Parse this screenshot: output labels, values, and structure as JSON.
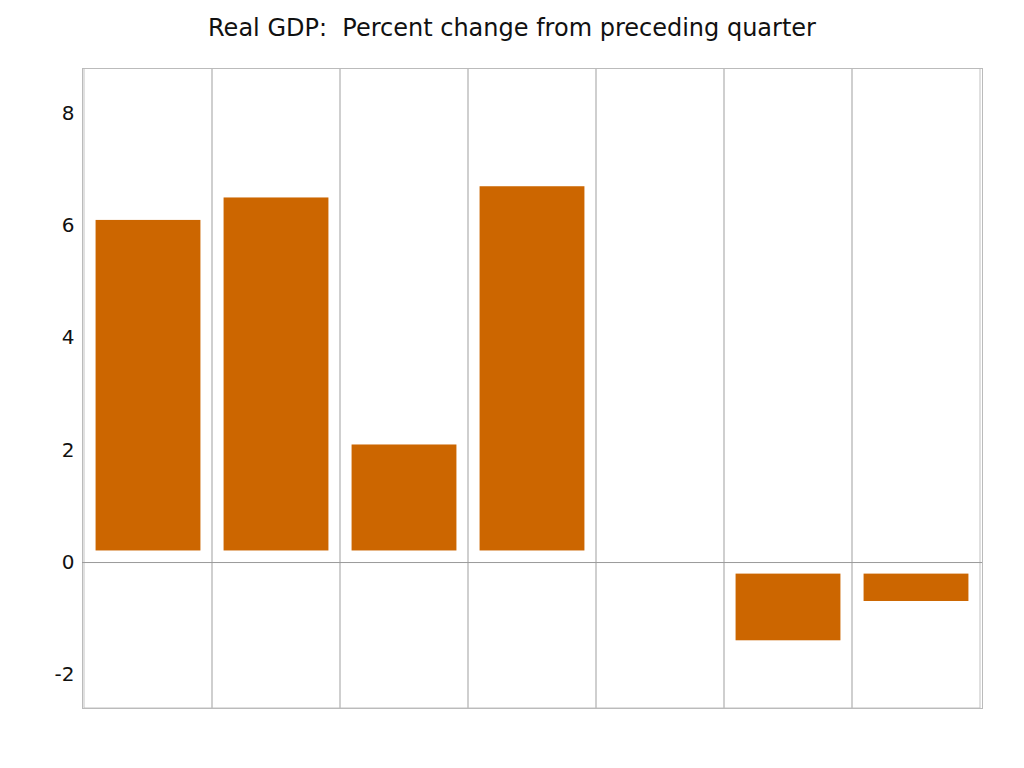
{
  "chart_data": {
    "type": "bar",
    "title": "Real GDP:  Percent change from preceding quarter",
    "categories": [
      null,
      null,
      null,
      null,
      null,
      null,
      null
    ],
    "values": [
      6.3,
      6.7,
      2.3,
      6.9,
      null,
      -1.6,
      -0.9
    ],
    "color": "#CC6600",
    "ylim": [
      -2.6,
      8.8
    ],
    "yticks": [
      -2,
      0,
      2,
      4,
      6,
      8
    ],
    "grid": true,
    "tick_labels": "y"
  }
}
